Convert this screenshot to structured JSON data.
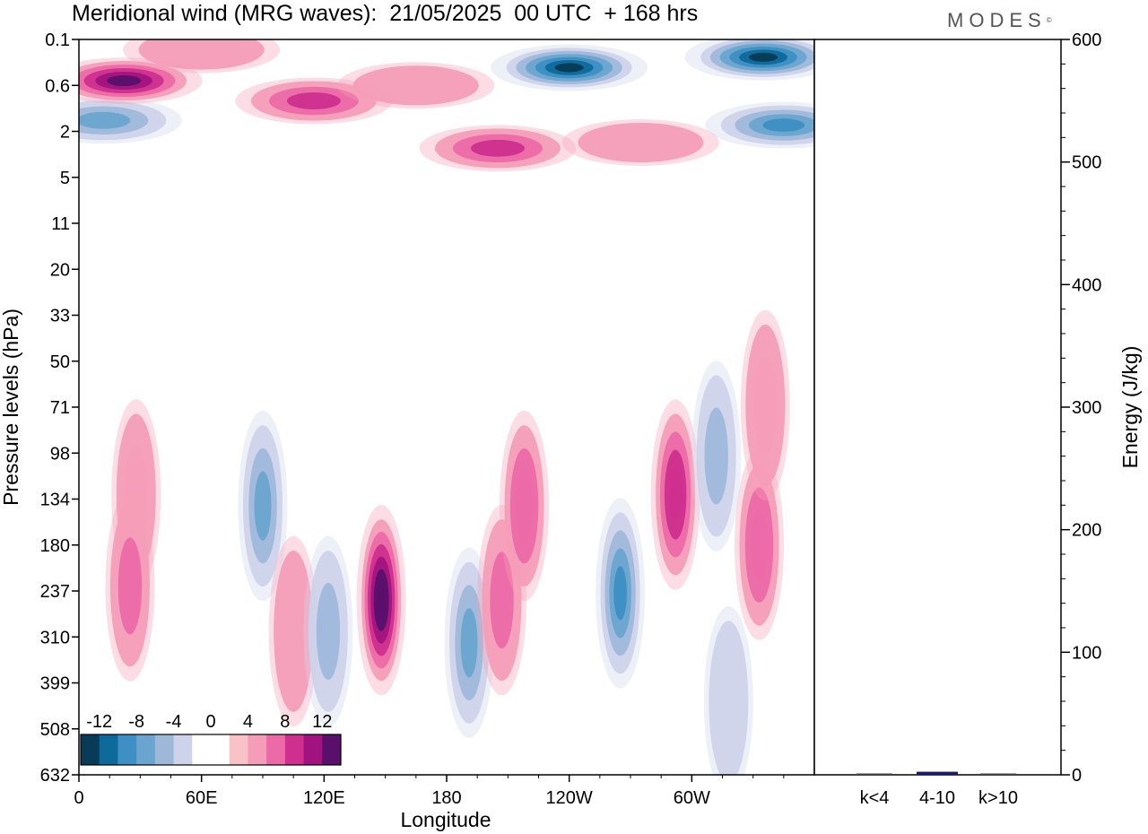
{
  "header": {
    "title": "Meridional wind (MRG waves):  21/05/2025  00 UTC  + 168 hrs",
    "logo": "MODES"
  },
  "chart_data": [
    {
      "type": "heatmap",
      "xlabel": "Longitude",
      "ylabel": "Pressure levels (hPa)",
      "x_ticks": [
        "0",
        "60E",
        "120E",
        "180",
        "120W",
        "60W"
      ],
      "y_ticks": [
        "0.1",
        "0.6",
        "2",
        "5",
        "11",
        "20",
        "33",
        "50",
        "71",
        "98",
        "134",
        "180",
        "237",
        "310",
        "399",
        "508",
        "632"
      ],
      "colorbar": {
        "labels": [
          "-12",
          "-8",
          "-4",
          "0",
          "4",
          "8",
          "12"
        ],
        "colors": [
          "#083b55",
          "#0d6a9a",
          "#3d8fc4",
          "#6aa4cf",
          "#9fb8da",
          "#cdd3ea",
          "#ffffff",
          "#ffffff",
          "#f9c2c6",
          "#f59db8",
          "#ec6aa6",
          "#cf2f8e",
          "#a11480",
          "#58106b"
        ]
      },
      "features": [
        {
          "lon": 12,
          "level": 1.5,
          "value": -8
        },
        {
          "lon": 22,
          "level": 0.5,
          "value": 12
        },
        {
          "lon": 60,
          "level": 0.15,
          "value": 4
        },
        {
          "lon": 115,
          "level": 0.9,
          "value": 8
        },
        {
          "lon": 165,
          "level": 0.6,
          "value": 4
        },
        {
          "lon": 205,
          "level": 2.8,
          "value": 8
        },
        {
          "lon": 240,
          "level": 0.3,
          "value": -14
        },
        {
          "lon": 275,
          "level": 2.5,
          "value": 4
        },
        {
          "lon": 335,
          "level": 0.2,
          "value": -14
        },
        {
          "lon": 345,
          "level": 1.7,
          "value": -10
        },
        {
          "lon": 28,
          "level": 130,
          "value": 5
        },
        {
          "lon": 25,
          "level": 230,
          "value": 6
        },
        {
          "lon": 90,
          "level": 140,
          "value": -7
        },
        {
          "lon": 105,
          "level": 300,
          "value": 4
        },
        {
          "lon": 122,
          "level": 300,
          "value": -5
        },
        {
          "lon": 148,
          "level": 250,
          "value": 13
        },
        {
          "lon": 191,
          "level": 320,
          "value": -8
        },
        {
          "lon": 207,
          "level": 250,
          "value": 6
        },
        {
          "lon": 218,
          "level": 140,
          "value": 7
        },
        {
          "lon": 265,
          "level": 240,
          "value": -10
        },
        {
          "lon": 292,
          "level": 130,
          "value": 9
        },
        {
          "lon": 312,
          "level": 100,
          "value": -6
        },
        {
          "lon": 333,
          "level": 180,
          "value": 7
        },
        {
          "lon": 336,
          "level": 70,
          "value": 5
        },
        {
          "lon": 318,
          "level": 440,
          "value": -4
        }
      ]
    },
    {
      "type": "bar",
      "categories": [
        "k<4",
        "4-10",
        "k>10"
      ],
      "values": [
        0.4,
        2.5,
        0.4
      ],
      "ylabel": "Energy (J/kg)",
      "ylim": [
        0,
        600
      ],
      "y_ticks": [
        "0",
        "100",
        "200",
        "300",
        "400",
        "500",
        "600"
      ]
    }
  ]
}
